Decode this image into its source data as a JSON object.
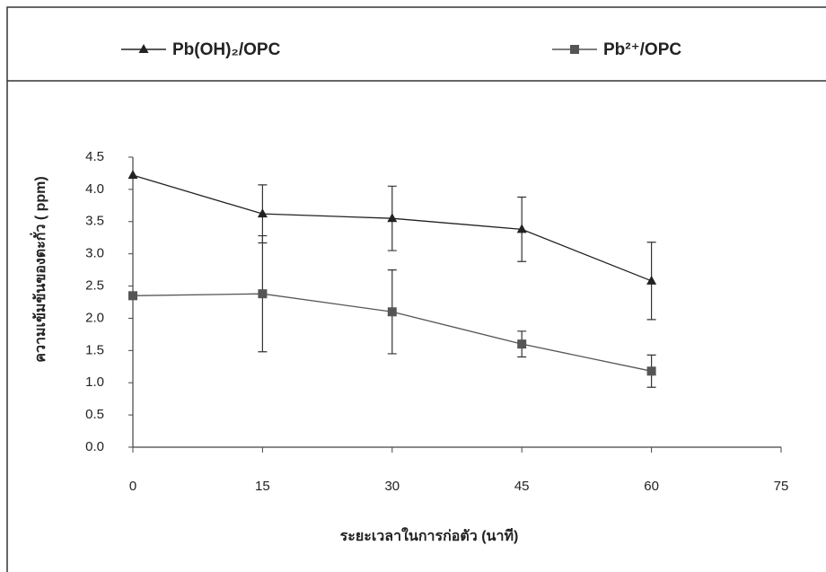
{
  "chart_data": {
    "type": "line",
    "x_label": "ระยะเวลาในการก่อตัว (นาที)",
    "y_label": "ความเข้มข้นของตะกั่ว ( ppm)",
    "x": [
      0,
      15,
      30,
      45,
      60
    ],
    "series": [
      {
        "name": "Pb(OH)₂/OPC",
        "color": "#222222",
        "marker": "triangle",
        "values": [
          4.22,
          3.62,
          3.55,
          3.38,
          2.58
        ],
        "errors": [
          0,
          0.45,
          0.5,
          0.5,
          0.6
        ]
      },
      {
        "name": "Pb²⁺/OPC",
        "color": "#555555",
        "marker": "square",
        "values": [
          2.35,
          2.38,
          2.1,
          1.6,
          1.18
        ],
        "errors": [
          0,
          0.9,
          0.65,
          0.2,
          0.25
        ]
      }
    ],
    "xlim": [
      0,
      75
    ],
    "xticks": [
      0,
      15,
      30,
      45,
      60,
      75
    ],
    "ylim": [
      0,
      4.5
    ],
    "yticks": [
      {
        "value": 0,
        "label": "0.0"
      },
      0.5,
      {
        "value": 1,
        "label": "1.0"
      },
      1.5,
      {
        "value": 2,
        "label": "2.0"
      },
      2.5,
      {
        "value": 3,
        "label": "3.0"
      },
      3.5,
      {
        "value": 4,
        "label": "4.0"
      },
      4.5
    ],
    "legend": "top"
  }
}
